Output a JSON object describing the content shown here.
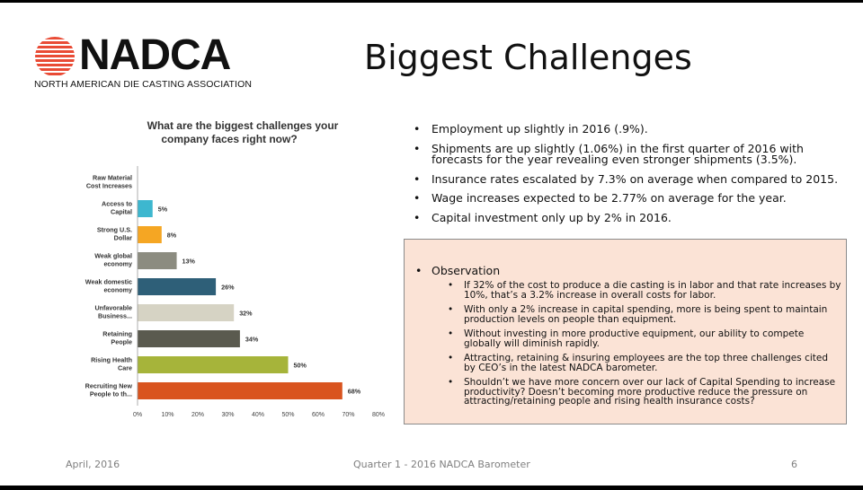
{
  "slide": {
    "title": "Biggest Challenges",
    "logo_word": "NADCA",
    "logo_subtitle": "NORTH AMERICAN DIE CASTING ASSOCIATION",
    "logo_icon": "striped-globe-icon",
    "brand_red": "#e94b35"
  },
  "chart_title_line1": "What are the biggest challenges your",
  "chart_title_line2": "company faces right now?",
  "chart_data": {
    "type": "bar",
    "orientation": "horizontal",
    "title": "What are the biggest challenges your company faces right now?",
    "categories": [
      [
        "Raw Material",
        "Cost Increases"
      ],
      [
        "Access to",
        "Capital"
      ],
      [
        "Strong U.S.",
        "Dollar"
      ],
      [
        "Weak global",
        "economy"
      ],
      [
        "Weak domestic",
        "economy"
      ],
      [
        "Unfavorable",
        "Business..."
      ],
      [
        "Retaining",
        "People"
      ],
      [
        "Rising Health",
        "Care"
      ],
      [
        "Recruiting New",
        "People to th..."
      ]
    ],
    "values": [
      0,
      5,
      8,
      13,
      26,
      32,
      34,
      50,
      68
    ],
    "value_labels": [
      "",
      "5%",
      "8%",
      "13%",
      "26%",
      "32%",
      "34%",
      "50%",
      "68%"
    ],
    "colors": [
      "#cccccc",
      "#3db7cf",
      "#f5a623",
      "#8c8c80",
      "#2e5f78",
      "#d6d3c4",
      "#5a5a4f",
      "#a6b43a",
      "#d9541f"
    ],
    "xlim": [
      0,
      80
    ],
    "xticks": [
      "0%",
      "10%",
      "20%",
      "30%",
      "40%",
      "50%",
      "60%",
      "70%",
      "80%"
    ],
    "grid": false
  },
  "bullets": [
    "Employment up slightly in 2016 (.9%).",
    "Shipments are up slightly (1.06%) in the first quarter of 2016 with forecasts for the year revealing even stronger shipments (3.5%).",
    "Insurance rates escalated by 7.3% on average when compared to 2015.",
    "Wage increases expected to be 2.77% on average for the year.",
    "Capital investment only up by 2% in 2016."
  ],
  "observation": {
    "heading": "Observation",
    "items": [
      "If 32% of the cost to produce a die casting is in labor and that rate increases by 10%, that’s a 3.2% increase in overall costs for labor.",
      "With only a 2% increase in capital spending, more is being spent to maintain production levels on people than equipment.",
      "Without investing in more productive equipment, our ability to compete globally will diminish rapidly.",
      "Attracting, retaining & insuring employees are the top three challenges cited by CEO’s in the latest NADCA barometer.",
      "Shouldn’t we have more concern over our lack of Capital Spending to increase productivity?  Doesn’t becoming more productive reduce the pressure on attracting/retaining people and rising health insurance costs?"
    ]
  },
  "footer": {
    "date": "April, 2016",
    "center": "Quarter 1 - 2016 NADCA Barometer",
    "page": "6"
  }
}
